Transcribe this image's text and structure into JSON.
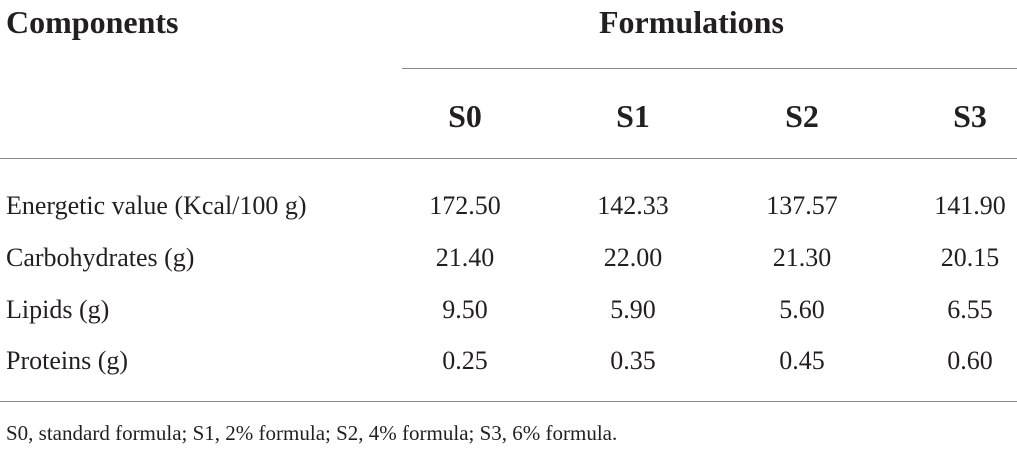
{
  "table": {
    "row_header_label": "Components",
    "group_header_label": "Formulations",
    "columns": [
      "S0",
      "S1",
      "S2",
      "S3"
    ],
    "rows": [
      {
        "label": "Energetic value (Kcal/100 g)",
        "values": [
          "172.50",
          "142.33",
          "137.57",
          "141.90"
        ]
      },
      {
        "label": "Carbohydrates (g)",
        "values": [
          "21.40",
          "22.00",
          "21.30",
          "20.15"
        ]
      },
      {
        "label": "Lipids (g)",
        "values": [
          "9.50",
          "5.90",
          "5.60",
          "6.55"
        ]
      },
      {
        "label": "Proteins (g)",
        "values": [
          "0.25",
          "0.35",
          "0.45",
          "0.60"
        ]
      }
    ],
    "footnote": "S0, standard formula; S1, 2% formula; S2, 4% formula; S3, 6% formula."
  }
}
